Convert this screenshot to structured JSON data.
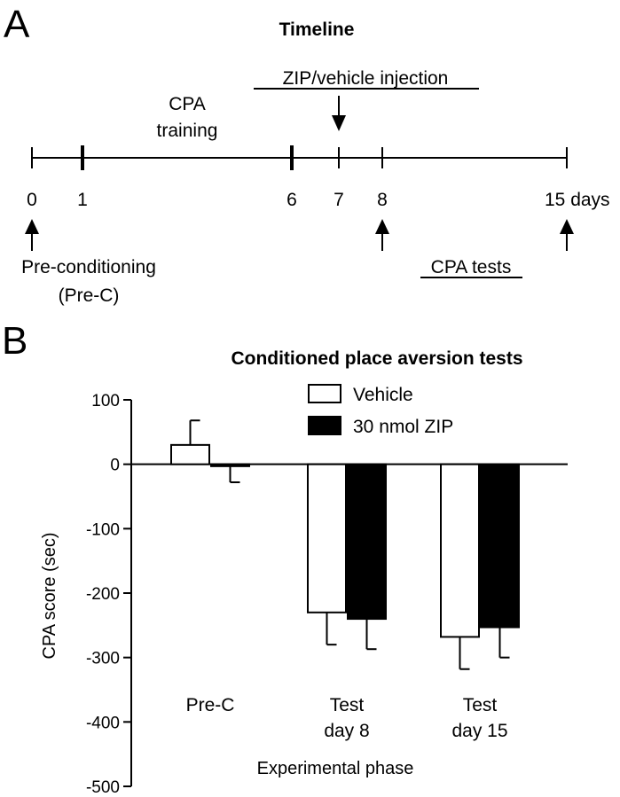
{
  "panel_a": {
    "letter": "A",
    "title": "Timeline",
    "training_label_line1": "CPA",
    "training_label_line2": "training",
    "injection_label": "ZIP/vehicle injection",
    "days": [
      "0",
      "1",
      "6",
      "7",
      "8",
      "15 days"
    ],
    "preconditioning_line1": "Pre-conditioning",
    "preconditioning_line2": "(Pre-C)",
    "tests_label": "CPA tests"
  },
  "chart_data": {
    "type": "bar",
    "panel_letter": "B",
    "title": "Conditioned  place aversion tests",
    "categories": [
      [
        "Pre-C"
      ],
      [
        "Test",
        "day 8"
      ],
      [
        "Test",
        "day 15"
      ]
    ],
    "series": [
      {
        "name": "Vehicle",
        "color": "#ffffff",
        "values": [
          30,
          -230,
          -268
        ],
        "errors": [
          38,
          50,
          50
        ]
      },
      {
        "name": "30 nmol ZIP",
        "color": "#000000",
        "values": [
          -3,
          -240,
          -253
        ],
        "errors": [
          25,
          47,
          47
        ]
      }
    ],
    "ylabel": "CPA score (sec)",
    "xlabel": "Experimental phase",
    "ylim": [
      -500,
      100
    ],
    "yticks": [
      100,
      0,
      -100,
      -200,
      -300,
      -400,
      -500
    ],
    "legend_position": "top-right",
    "grid": false
  }
}
